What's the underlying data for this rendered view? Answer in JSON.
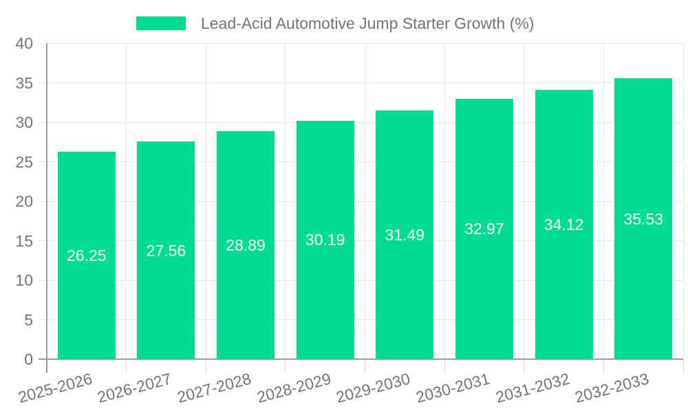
{
  "chart_data": {
    "type": "bar",
    "title": "",
    "series_name": "Lead-Acid Automotive Jump Starter Growth (%)",
    "categories": [
      "2025-2026",
      "2026-2027",
      "2027-2028",
      "2028-2029",
      "2029-2030",
      "2030-2031",
      "2031-2032",
      "2032-2033"
    ],
    "values": [
      26.25,
      27.56,
      28.89,
      30.19,
      31.49,
      32.97,
      34.12,
      35.53
    ],
    "xlabel": "",
    "ylabel": "",
    "ylim": [
      0,
      40
    ],
    "yticks": [
      0,
      5,
      10,
      15,
      20,
      25,
      30,
      35,
      40
    ],
    "grid": true,
    "legend_position": "top",
    "value_label_decimals": 2,
    "colors": {
      "bar": "#00DC92",
      "gridline": "#E7E7E7",
      "axis_line": "#9B9B9B",
      "tick_mark": "#D9D9D9",
      "tick_label": "#757575",
      "value_label": "#FFFFFF",
      "legend_text": "#757575",
      "background": "#FFFFFF"
    }
  }
}
